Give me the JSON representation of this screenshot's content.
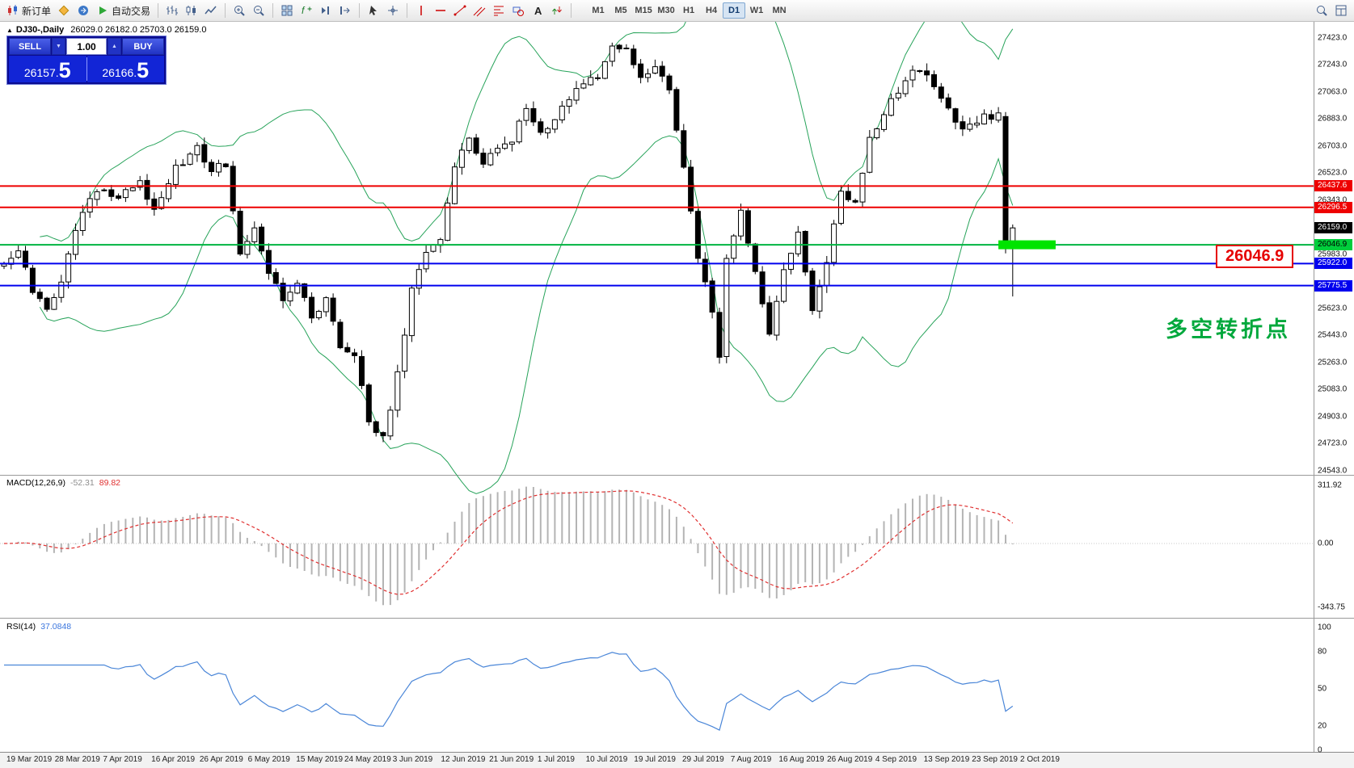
{
  "toolbar": {
    "items": [
      {
        "icon": "new-order-icon",
        "label": "新订单",
        "name": "new-order-button"
      },
      {
        "icon": "metaeditor-icon",
        "name": "metaeditor-button"
      },
      {
        "icon": "terminal-icon",
        "name": "terminal-button"
      },
      {
        "icon": "autotrading-icon",
        "label": "自动交易",
        "name": "autotrading-button"
      },
      {
        "sep": true
      },
      {
        "icon": "bar-chart-icon",
        "name": "bar-chart-button"
      },
      {
        "icon": "candle-chart-icon",
        "name": "candle-chart-button"
      },
      {
        "icon": "line-chart-icon",
        "name": "line-chart-button"
      },
      {
        "sep": true
      },
      {
        "icon": "zoom-in-icon",
        "name": "zoom-in-button"
      },
      {
        "icon": "zoom-out-icon",
        "name": "zoom-out-button"
      },
      {
        "sep": true
      },
      {
        "icon": "tile-windows-icon",
        "name": "tile-windows-button"
      },
      {
        "icon": "indicators-icon",
        "name": "indicators-button"
      },
      {
        "icon": "scroll-end-icon",
        "name": "scroll-to-end-button"
      },
      {
        "icon": "shift-chart-icon",
        "name": "chart-shift-button"
      },
      {
        "sep": true
      },
      {
        "icon": "cursor-icon",
        "name": "cursor-button"
      },
      {
        "icon": "crosshair-icon",
        "name": "crosshair-button"
      },
      {
        "sep": true
      },
      {
        "icon": "vline-icon",
        "name": "vertical-line-button"
      },
      {
        "icon": "hline-icon",
        "name": "horizontal-line-button"
      },
      {
        "icon": "trendline-icon",
        "name": "trendline-button"
      },
      {
        "icon": "channel-icon",
        "name": "channel-button"
      },
      {
        "icon": "fibonacci-icon",
        "name": "fibonacci-button"
      },
      {
        "icon": "shapes-icon",
        "name": "shapes-button"
      },
      {
        "icon": "text-icon",
        "name": "text-label-button"
      },
      {
        "icon": "arrows-icon",
        "name": "arrows-button"
      },
      {
        "sep": true
      }
    ],
    "timeframes": [
      "M1",
      "M5",
      "M15",
      "M30",
      "H1",
      "H4",
      "D1",
      "W1",
      "MN"
    ],
    "active_timeframe": "D1",
    "right_items": [
      {
        "icon": "search-icon",
        "name": "search-button"
      },
      {
        "icon": "layout-icon",
        "name": "data-window-button"
      }
    ]
  },
  "chart": {
    "expand_icon": "▲",
    "symbol_title": "DJ30-,Daily",
    "ohlc_text": "26029.0 26182.0 25703.0 26159.0",
    "trade_widget": {
      "sell_label": "SELL",
      "buy_label": "BUY",
      "volume": "1.00",
      "volume_down_icon": "▼",
      "volume_up_icon": "▲",
      "bid_small": "26157.",
      "bid_big": "5",
      "ask_small": "26166.",
      "ask_big": "5"
    },
    "annotation_text": "多空转折点",
    "level_label": "26046.9",
    "price_axis_values": [
      27423,
      27243,
      27063,
      26883,
      26703,
      26523,
      26343,
      26163,
      25983,
      25803,
      25623,
      25443,
      25263,
      25083,
      24903,
      24723,
      24543
    ],
    "h_lines": [
      {
        "price": 26437.6,
        "color": "#ee0000"
      },
      {
        "price": 26296.5,
        "color": "#ee0000"
      },
      {
        "price": 26046.9,
        "color": "#00b440",
        "tag_bg": "#00ce3c",
        "dark_text": true
      },
      {
        "price": 25922.0,
        "color": "#0000ee"
      },
      {
        "price": 25775.5,
        "color": "#0000ee"
      }
    ],
    "current_price": {
      "price": 26159.0
    },
    "highlight": {
      "price": 26046.9,
      "bar_start": 139,
      "bar_end": 147,
      "color": "#00e400"
    }
  },
  "macd": {
    "title": "MACD(12,26,9)",
    "value_main": "-52.31",
    "value_signal": "89.82",
    "axis_values": [
      311.92,
      0,
      -343.75
    ]
  },
  "rsi": {
    "title": "RSI(14)",
    "value": "37.0848",
    "axis_values": [
      100,
      80,
      50,
      20,
      0
    ]
  },
  "date_axis": [
    "19 Mar 2019",
    "28 Mar 2019",
    "7 Apr 2019",
    "16 Apr 2019",
    "26 Apr 2019",
    "6 May 2019",
    "15 May 2019",
    "24 May 2019",
    "3 Jun 2019",
    "12 Jun 2019",
    "21 Jun 2019",
    "1 Jul 2019",
    "10 Jul 2019",
    "19 Jul 2019",
    "29 Jul 2019",
    "7 Aug 2019",
    "16 Aug 2019",
    "26 Aug 2019",
    "4 Sep 2019",
    "13 Sep 2019",
    "23 Sep 2019",
    "2 Oct 2019"
  ],
  "chart_data": {
    "type": "candlestick",
    "symbol": "DJ30-",
    "timeframe": "Daily",
    "bars": 142,
    "current_bar": {
      "open": 26029.0,
      "high": 26182.0,
      "low": 25703.0,
      "close": 26159.0
    },
    "bid": 26157.5,
    "ask": 26166.5,
    "price_range": [
      24543.0,
      27423.0
    ],
    "close_waypoints": [
      [
        0,
        25900
      ],
      [
        2,
        26020
      ],
      [
        4,
        25720
      ],
      [
        6,
        25620
      ],
      [
        8,
        25780
      ],
      [
        10,
        26150
      ],
      [
        13,
        26420
      ],
      [
        16,
        26360
      ],
      [
        19,
        26450
      ],
      [
        21,
        26280
      ],
      [
        24,
        26560
      ],
      [
        27,
        26680
      ],
      [
        29,
        26550
      ],
      [
        31,
        26590
      ],
      [
        33,
        25960
      ],
      [
        35,
        26180
      ],
      [
        37,
        25880
      ],
      [
        39,
        25660
      ],
      [
        41,
        25800
      ],
      [
        43,
        25560
      ],
      [
        45,
        25680
      ],
      [
        47,
        25380
      ],
      [
        49,
        25300
      ],
      [
        51,
        24880
      ],
      [
        53,
        24750
      ],
      [
        55,
        25180
      ],
      [
        57,
        25750
      ],
      [
        59,
        26020
      ],
      [
        61,
        26080
      ],
      [
        63,
        26580
      ],
      [
        65,
        26740
      ],
      [
        67,
        26560
      ],
      [
        69,
        26700
      ],
      [
        71,
        26730
      ],
      [
        73,
        26960
      ],
      [
        75,
        26810
      ],
      [
        77,
        26880
      ],
      [
        80,
        27100
      ],
      [
        83,
        27180
      ],
      [
        85,
        27350
      ],
      [
        87,
        27330
      ],
      [
        89,
        27150
      ],
      [
        91,
        27230
      ],
      [
        93,
        27080
      ],
      [
        95,
        26560
      ],
      [
        97,
        25950
      ],
      [
        99,
        25620
      ],
      [
        100,
        25320
      ],
      [
        101,
        25980
      ],
      [
        103,
        26280
      ],
      [
        105,
        25880
      ],
      [
        107,
        25450
      ],
      [
        109,
        25890
      ],
      [
        111,
        26140
      ],
      [
        113,
        25620
      ],
      [
        115,
        25920
      ],
      [
        117,
        26400
      ],
      [
        119,
        26320
      ],
      [
        121,
        26750
      ],
      [
        124,
        27010
      ],
      [
        126,
        27150
      ],
      [
        128,
        27230
      ],
      [
        130,
        27080
      ],
      [
        132,
        26940
      ],
      [
        134,
        26800
      ],
      [
        136,
        26880
      ],
      [
        138,
        26900
      ],
      [
        139,
        26917
      ],
      [
        140,
        26040
      ],
      [
        141,
        26159
      ]
    ],
    "forced_last_bars": [
      [
        26900,
        26930,
        25990,
        26040
      ],
      [
        26029,
        26182,
        25703,
        26159
      ]
    ],
    "indicators": [
      {
        "name": "Bollinger Bands",
        "period": 20,
        "deviation": 2,
        "color": "#27a35a"
      },
      {
        "name": "MACD",
        "params": [
          12,
          26,
          9
        ],
        "current_main": -52.31,
        "current_signal": 89.82,
        "axis": [
          311.92,
          0.0,
          -343.75
        ]
      },
      {
        "name": "RSI",
        "period": 14,
        "current": 37.0848,
        "axis": [
          100,
          80,
          50,
          20,
          0
        ]
      }
    ],
    "horizontal_levels": [
      {
        "price": 26437.6,
        "color": "red"
      },
      {
        "price": 26296.5,
        "color": "red"
      },
      {
        "price": 26046.9,
        "color": "green"
      },
      {
        "price": 25922.0,
        "color": "blue"
      },
      {
        "price": 25775.5,
        "color": "blue"
      }
    ]
  }
}
